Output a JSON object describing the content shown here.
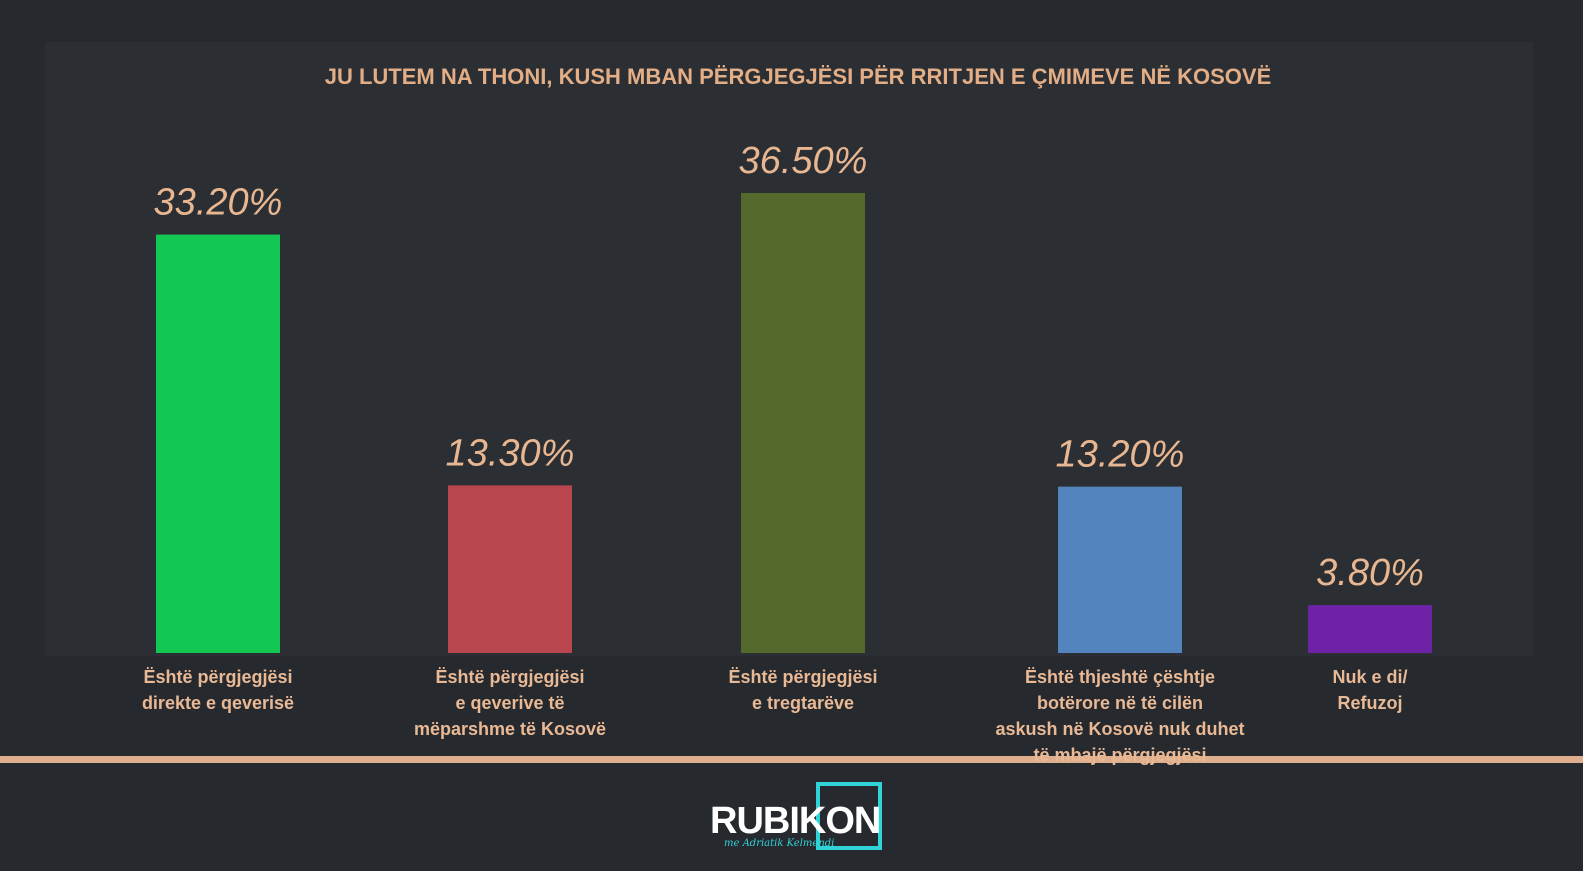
{
  "chart_data": {
    "type": "bar",
    "title": "JU LUTEM NA THONI, KUSH MBAN PËRGJEGJËSI PËR RRITJEN E ÇMIMEVE NË KOSOVË",
    "categories": [
      "Është përgjegjësi\ndirekte e qeverisë",
      "Është përgjegjësi\ne qeverive të\nmëparshme të Kosovë",
      "Është përgjegjësi\ne tregtarëve",
      "Është thjeshtë çështje\nbotërore në të cilën\naskush në Kosovë nuk duhet\ntë mbajë përgjegjësi",
      "Nuk e di/\nRefuzoj"
    ],
    "values": [
      33.2,
      13.3,
      36.5,
      13.2,
      3.8
    ],
    "value_labels": [
      "33.20%",
      "13.30%",
      "36.50%",
      "13.20%",
      "3.80%"
    ],
    "colors": [
      "#12c752",
      "#b9454f",
      "#536a2c",
      "#5384bd",
      "#6e22a6"
    ]
  },
  "logo": {
    "name": "RUBIKON",
    "subtitle": "me Adriatik Kelmendi"
  }
}
